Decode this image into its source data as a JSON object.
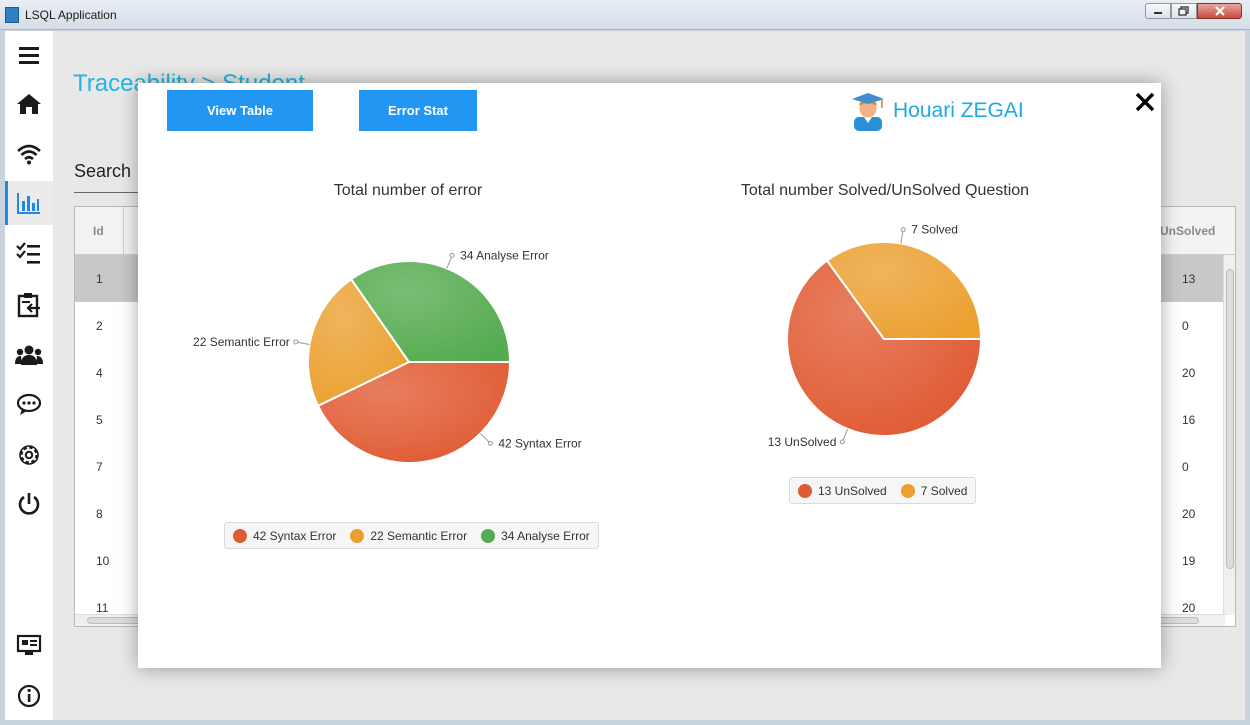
{
  "window": {
    "title": "LSQL Application",
    "icon_text": "LSQL"
  },
  "sidebar": {
    "items": [
      {
        "name": "menu-icon"
      },
      {
        "name": "home-icon"
      },
      {
        "name": "wifi-icon"
      },
      {
        "name": "bar-chart-icon",
        "active": true
      },
      {
        "name": "checklist-icon"
      },
      {
        "name": "clipboard-icon"
      },
      {
        "name": "users-icon"
      },
      {
        "name": "chat-icon"
      },
      {
        "name": "gear-icon"
      },
      {
        "name": "power-icon"
      },
      {
        "name": "dashboard-icon"
      },
      {
        "name": "info-icon"
      }
    ]
  },
  "background": {
    "breadcrumb": "Traceability > Student",
    "search_label": "Search",
    "table": {
      "col_id": "Id",
      "col_unsolved": "UnSolved",
      "rows": [
        {
          "id": "1",
          "unsolved": "13"
        },
        {
          "id": "2",
          "unsolved": "0"
        },
        {
          "id": "4",
          "unsolved": "20"
        },
        {
          "id": "5",
          "unsolved": "16"
        },
        {
          "id": "7",
          "unsolved": "0"
        },
        {
          "id": "8",
          "unsolved": "20"
        },
        {
          "id": "10",
          "unsolved": "19"
        },
        {
          "id": "11",
          "unsolved": "20"
        }
      ]
    }
  },
  "modal": {
    "view_table_label": "View Table",
    "error_stat_label": "Error Stat",
    "user_name": "Houari ZEGAI",
    "close_label": "✕"
  },
  "chart_data": [
    {
      "type": "pie",
      "title": "Total number of error",
      "labels": [
        "42 Syntax Error",
        "22 Semantic Error",
        "34 Analyse Error"
      ],
      "values": [
        42,
        22,
        34
      ],
      "colors": [
        "#e05a32",
        "#eba030",
        "#55ab4f"
      ],
      "legend": "bottom"
    },
    {
      "type": "pie",
      "title": "Total number Solved/UnSolved Question",
      "labels": [
        "13 UnSolved",
        "7 Solved"
      ],
      "values": [
        13,
        7
      ],
      "colors": [
        "#e05a32",
        "#eba030"
      ],
      "legend": "bottom"
    }
  ]
}
